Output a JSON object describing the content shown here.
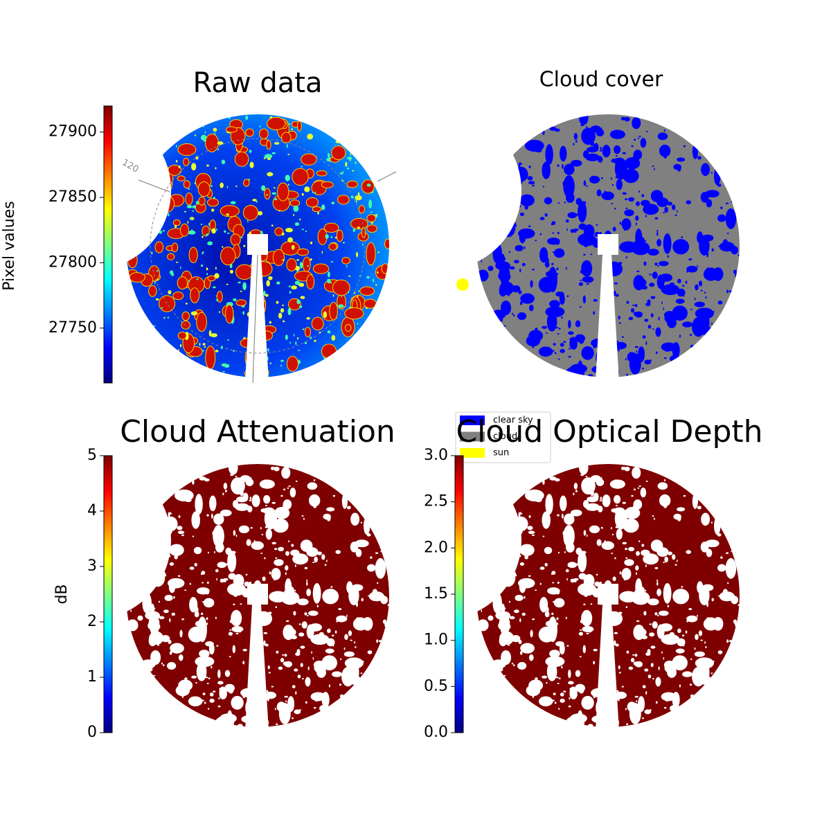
{
  "chart_data": [
    {
      "type": "image",
      "title": "Raw data",
      "annotations": [
        "120"
      ],
      "colorbar": {
        "label": "Pixel values",
        "lim": [
          27708,
          27920
        ],
        "ticks": [
          27750,
          27800,
          27850,
          27900
        ],
        "colormap": [
          "#00007f",
          "#0000ff",
          "#007fff",
          "#00ffff",
          "#7fff7f",
          "#ffff00",
          "#ff7f00",
          "#ff0000",
          "#7f0000"
        ]
      }
    },
    {
      "type": "image",
      "title": "Cloud cover",
      "legend": [
        {
          "name": "clear sky",
          "color": "#0000ff"
        },
        {
          "name": "cloud",
          "color": "#808080"
        },
        {
          "name": "sun",
          "color": "#ffff00"
        }
      ]
    },
    {
      "type": "image",
      "title": "Cloud Attenuation",
      "colorbar": {
        "label": "dB",
        "lim": [
          0,
          5
        ],
        "ticks": [
          0,
          1,
          2,
          3,
          4,
          5
        ],
        "colormap": [
          "#00007f",
          "#0000ff",
          "#007fff",
          "#00ffff",
          "#7fff7f",
          "#ffff00",
          "#ff7f00",
          "#ff0000",
          "#7f0000"
        ]
      }
    },
    {
      "type": "image",
      "title": "Cloud Optical Depth",
      "colorbar": {
        "lim": [
          0,
          3
        ],
        "ticks": [
          {
            "value": 0,
            "label": "0.0"
          },
          0.5,
          {
            "value": 1,
            "label": "1.0"
          },
          1.5,
          {
            "value": 2,
            "label": "2.0"
          },
          2.5,
          {
            "value": 3,
            "label": "3.0"
          }
        ],
        "colormap": [
          "#00007f",
          "#0000ff",
          "#007fff",
          "#00ffff",
          "#7fff7f",
          "#ffff00",
          "#ff7f00",
          "#ff0000",
          "#7f0000"
        ]
      }
    }
  ]
}
